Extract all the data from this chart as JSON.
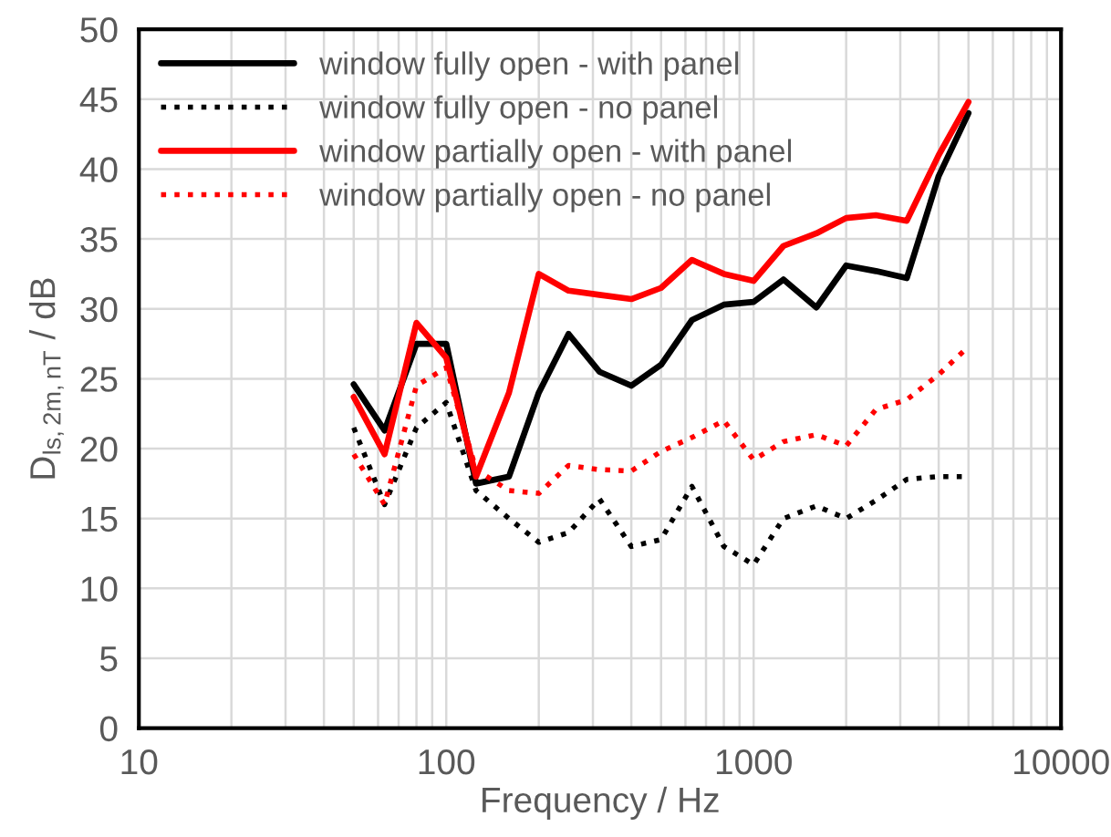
{
  "chart_data": {
    "type": "line",
    "xlabel": "Frequency / Hz",
    "ylabel": "D$_{ls,2m,nT}$ / dB",
    "x": [
      50,
      63,
      80,
      100,
      125,
      160,
      200,
      250,
      315,
      400,
      500,
      630,
      800,
      1000,
      1250,
      1600,
      2000,
      2500,
      3150,
      4000,
      5000
    ],
    "series": [
      {
        "name": "window fully open - with panel",
        "color": "#000000",
        "line_style": "solid",
        "values": [
          24.6,
          21.3,
          27.5,
          27.5,
          17.5,
          18,
          24,
          28.2,
          25.5,
          24.5,
          26,
          29.2,
          30.3,
          30.5,
          32.1,
          30.1,
          33.1,
          32.7,
          32.2,
          39.5,
          44
        ]
      },
      {
        "name": "window fully open - no panel",
        "color": "#000000",
        "line_style": "dotted",
        "values": [
          21.5,
          16,
          21.5,
          23.3,
          17,
          15,
          13.3,
          14,
          16.4,
          13,
          13.5,
          17.3,
          13,
          11.7,
          15,
          15.9,
          15,
          16.3,
          17.8,
          18,
          18
        ]
      },
      {
        "name": "window partially open - with panel",
        "color": "#ff0000",
        "line_style": "solid",
        "values": [
          23.7,
          19.6,
          29,
          26.5,
          18,
          24,
          32.5,
          31.3,
          31,
          30.7,
          31.5,
          33.5,
          32.5,
          32,
          34.5,
          35.4,
          36.5,
          36.7,
          36.3,
          41,
          44.8
        ]
      },
      {
        "name": "window partially open - no panel",
        "color": "#ff0000",
        "line_style": "dotted",
        "values": [
          19.6,
          16,
          24.5,
          25.8,
          18.5,
          17,
          16.8,
          18.8,
          18.5,
          18.4,
          19.8,
          20.8,
          22,
          19.2,
          20.5,
          21,
          20.2,
          22.8,
          23.5,
          25.3,
          27.3
        ]
      }
    ],
    "log": "x",
    "xlim": [
      10,
      10000
    ],
    "xticks": [
      10,
      100,
      1000,
      10000
    ],
    "ylim": [
      0,
      50
    ],
    "yticks": [
      0,
      5,
      10,
      15,
      20,
      25,
      30,
      35,
      40,
      45,
      50
    ],
    "grid": true,
    "legend": "top left",
    "marker": "none"
  }
}
